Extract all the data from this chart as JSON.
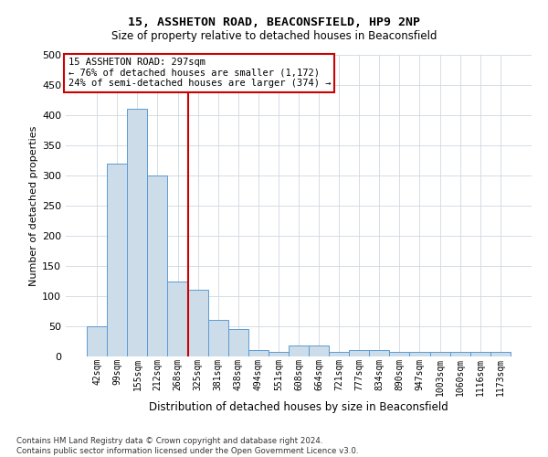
{
  "title": "15, ASSHETON ROAD, BEACONSFIELD, HP9 2NP",
  "subtitle": "Size of property relative to detached houses in Beaconsfield",
  "xlabel": "Distribution of detached houses by size in Beaconsfield",
  "ylabel": "Number of detached properties",
  "footer_line1": "Contains HM Land Registry data © Crown copyright and database right 2024.",
  "footer_line2": "Contains public sector information licensed under the Open Government Licence v3.0.",
  "categories": [
    "42sqm",
    "99sqm",
    "155sqm",
    "212sqm",
    "268sqm",
    "325sqm",
    "381sqm",
    "438sqm",
    "494sqm",
    "551sqm",
    "608sqm",
    "664sqm",
    "721sqm",
    "777sqm",
    "834sqm",
    "890sqm",
    "947sqm",
    "1003sqm",
    "1060sqm",
    "1116sqm",
    "1173sqm"
  ],
  "values": [
    50,
    320,
    410,
    300,
    125,
    110,
    60,
    45,
    10,
    7,
    18,
    18,
    7,
    10,
    10,
    7,
    7,
    7,
    7,
    7,
    7
  ],
  "bar_color": "#ccdce8",
  "bar_edge_color": "#5b9bd5",
  "vline_x": 4.5,
  "vline_color": "#cc0000",
  "annotation_line1": "15 ASSHETON ROAD: 297sqm",
  "annotation_line2": "← 76% of detached houses are smaller (1,172)",
  "annotation_line3": "24% of semi-detached houses are larger (374) →",
  "annotation_box_facecolor": "#ffffff",
  "annotation_box_edgecolor": "#cc0000",
  "ylim_max": 500,
  "yticks": [
    0,
    50,
    100,
    150,
    200,
    250,
    300,
    350,
    400,
    450,
    500
  ],
  "background_color": "#ffffff",
  "grid_color": "#d0d8e0",
  "title_fontsize": 9.5,
  "subtitle_fontsize": 8.5,
  "ylabel_fontsize": 8,
  "xlabel_fontsize": 8.5,
  "tick_fontsize": 8,
  "xtick_fontsize": 7,
  "annot_fontsize": 7.5,
  "footer_fontsize": 6.2
}
